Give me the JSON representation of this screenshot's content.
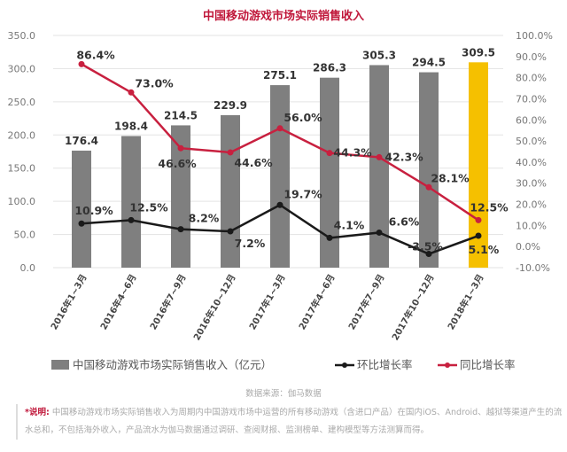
{
  "chart_data": {
    "type": "bar+line",
    "title": "中国移动游戏市场实际销售收入",
    "categories": [
      "2016年1~3月",
      "2016年4~6月",
      "2016年7~9月",
      "2016年10~12月",
      "2017年1~3月",
      "2017年4~6月",
      "2017年7~9月",
      "2017年10~12月",
      "2018年1~3月"
    ],
    "series": [
      {
        "name": "中国移动游戏市场实际销售收入（亿元）",
        "type": "bar",
        "axis": "left",
        "values": [
          176.4,
          198.4,
          214.5,
          229.9,
          275.1,
          286.3,
          305.3,
          294.5,
          309.5
        ],
        "color": "#7f7f7f",
        "highlight_color": "#f5c000"
      },
      {
        "name": "环比增长率",
        "type": "line",
        "axis": "right",
        "values": [
          10.9,
          12.5,
          8.2,
          7.2,
          19.7,
          4.1,
          6.6,
          -3.5,
          5.1
        ],
        "color": "#1a1a1a"
      },
      {
        "name": "同比增长率",
        "type": "line",
        "axis": "right",
        "values": [
          86.4,
          73.0,
          46.6,
          44.6,
          56.0,
          44.3,
          42.3,
          28.1,
          12.5
        ],
        "color": "#c8203f"
      }
    ],
    "left_ylim": [
      0,
      350
    ],
    "left_ticks": [
      "0.0",
      "50.0",
      "100.0",
      "150.0",
      "200.0",
      "250.0",
      "300.0",
      "350.0"
    ],
    "right_ylim": [
      -10,
      100
    ],
    "right_ticks": [
      "-10.0%",
      "0.0%",
      "10.0%",
      "20.0%",
      "30.0%",
      "40.0%",
      "50.0%",
      "60.0%",
      "70.0%",
      "80.0%",
      "90.0%",
      "100.0%"
    ],
    "legend_position": "bottom",
    "watermark": "游戏工委 伽马数据"
  },
  "source": "数据来源：伽马数据",
  "note_label": "*说明:",
  "note_text": "中国移动游戏市场实际销售收入为周期内中国游戏市场中运营的所有移动游戏（含进口产品）在国内iOS、Android、越狱等渠道产生的流水总和，不包括海外收入，产品流水为伽马数据通过调研、查阅财报、监测榜单、建构模型等方法测算而得。"
}
